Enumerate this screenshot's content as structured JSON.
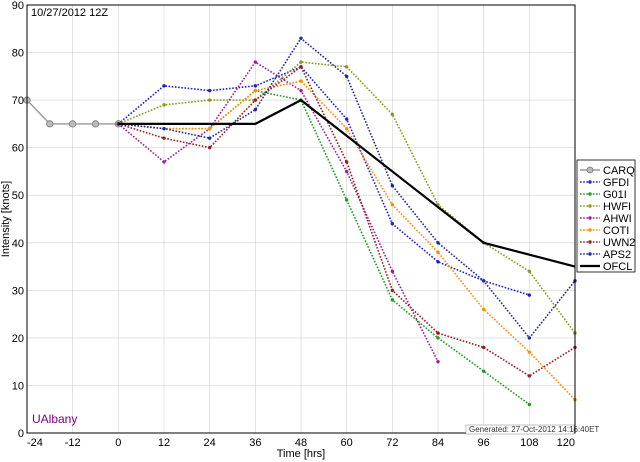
{
  "header": {
    "datetime": "10/27/2012 12Z"
  },
  "credit": {
    "text": "UAlbany",
    "color": "#800080"
  },
  "generated": {
    "text": "Generated: 27-Oct-2012 14:16:40ET"
  },
  "chart_data": {
    "type": "line",
    "title": "",
    "xlabel": "Time [hrs]",
    "ylabel": "Intensity [knots]",
    "xlim": [
      -24,
      120
    ],
    "ylim": [
      0,
      90
    ],
    "xticks": [
      -24,
      -12,
      0,
      12,
      24,
      36,
      48,
      60,
      72,
      84,
      96,
      108,
      120
    ],
    "yticks": [
      0,
      10,
      20,
      30,
      40,
      50,
      60,
      70,
      80,
      90
    ],
    "grid": true,
    "legend_position": "right",
    "series": [
      {
        "name": "CARQ",
        "color": "#999999",
        "style": "solid",
        "marker": "circle",
        "x": [
          -24,
          -18,
          -12,
          -6,
          0
        ],
        "y": [
          70,
          65,
          65,
          65,
          65
        ]
      },
      {
        "name": "GFDI",
        "color": "#1f1fd0",
        "style": "dotted",
        "marker": "dot",
        "x": [
          0,
          12,
          24,
          36,
          48,
          60,
          72,
          84,
          96,
          108
        ],
        "y": [
          65,
          73,
          72,
          73,
          77,
          66,
          44,
          36,
          32,
          29
        ]
      },
      {
        "name": "G01I",
        "color": "#1e9a1e",
        "style": "dotted",
        "marker": "dot",
        "x": [
          0,
          12,
          24,
          36,
          48,
          60,
          72,
          84,
          96,
          108
        ],
        "y": [
          65,
          64,
          64,
          72,
          70,
          49,
          28,
          20,
          13,
          6
        ]
      },
      {
        "name": "HWFI",
        "color": "#8a9a1e",
        "style": "dotted",
        "marker": "dot",
        "x": [
          0,
          12,
          24,
          36,
          48,
          60,
          72,
          84,
          96,
          108,
          120
        ],
        "y": [
          65,
          69,
          70,
          70,
          78,
          77,
          67,
          48,
          40,
          34,
          21
        ]
      },
      {
        "name": "AHWI",
        "color": "#9a1e9a",
        "style": "dotted",
        "marker": "dot",
        "x": [
          0,
          12,
          24,
          36,
          48,
          60,
          72,
          84
        ],
        "y": [
          65,
          57,
          64,
          78,
          72,
          55,
          34,
          15
        ]
      },
      {
        "name": "COTI",
        "color": "#ff8c00",
        "style": "dotted",
        "marker": "dot",
        "x": [
          0,
          12,
          24,
          36,
          48,
          60,
          72,
          84,
          96,
          108,
          120
        ],
        "y": [
          65,
          64,
          64,
          72,
          74,
          64,
          48,
          38,
          26,
          17,
          7
        ]
      },
      {
        "name": "UWN2",
        "color": "#9a1e1e",
        "style": "dotted",
        "marker": "dot",
        "x": [
          0,
          12,
          24,
          36,
          48,
          60,
          72,
          84,
          96,
          108,
          120
        ],
        "y": [
          65,
          62,
          60,
          70,
          77,
          57,
          30,
          21,
          18,
          12,
          18
        ]
      },
      {
        "name": "APS2",
        "color": "#1f2a9a",
        "style": "dotted",
        "marker": "dot",
        "x": [
          0,
          12,
          24,
          36,
          48,
          60,
          72,
          84,
          96,
          108,
          120
        ],
        "y": [
          65,
          64,
          62,
          68,
          83,
          75,
          52,
          40,
          32,
          20,
          32
        ]
      },
      {
        "name": "OFCL",
        "color": "#000000",
        "style": "solid",
        "marker": "none",
        "x": [
          0,
          12,
          24,
          36,
          48,
          72,
          96,
          120
        ],
        "y": [
          65,
          65,
          65,
          65,
          70,
          55,
          40,
          35
        ]
      }
    ]
  }
}
